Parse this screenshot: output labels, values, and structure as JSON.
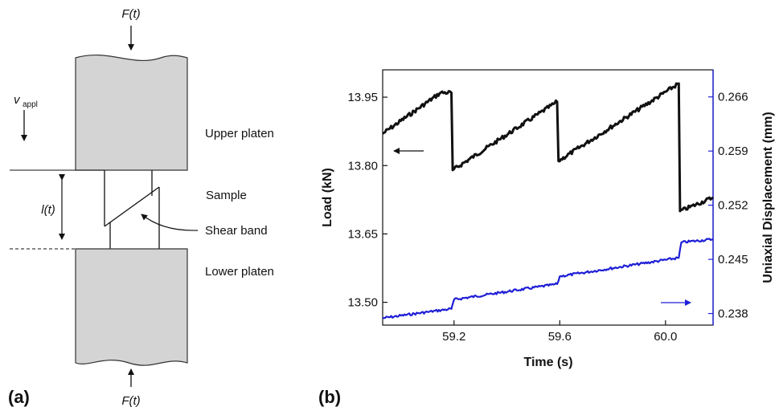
{
  "panel_a": {
    "panel_label": "(a)",
    "force_top": "F(t)",
    "force_bottom": "F(t)",
    "v_label": "v",
    "v_sub": "appl",
    "length_label": "l(t)",
    "upper_platen": "Upper platen",
    "sample": "Sample",
    "shear_band": "Shear band",
    "lower_platen": "Lower platen",
    "platen_fill": "#d4d4d4"
  },
  "panel_b": {
    "panel_label": "(b)"
  },
  "chart_data": {
    "type": "line",
    "xlabel": "Time (s)",
    "ylabel_left": "Load (kN)",
    "ylabel_right": "Uniaxial Displacement (mm)",
    "xlim": [
      58.93,
      60.18
    ],
    "ylim_left": [
      13.45,
      14.01
    ],
    "ylim_right": [
      0.2365,
      0.2695
    ],
    "x_ticks": [
      59.2,
      59.6,
      60.0
    ],
    "x_tick_labels": [
      "59.2",
      "59.6",
      "60.0"
    ],
    "y_left_ticks": [
      13.5,
      13.65,
      13.8,
      13.95
    ],
    "y_left_tick_labels": [
      "13.50",
      "13.65",
      "13.80",
      "13.95"
    ],
    "y_right_ticks": [
      0.238,
      0.245,
      0.252,
      0.259,
      0.266
    ],
    "y_right_tick_labels": [
      "0.238",
      "0.245",
      "0.252",
      "0.259",
      "0.266"
    ],
    "right_axis_color": "#1f1fd6",
    "series": [
      {
        "axis": "left",
        "color": "#111111",
        "x": [
          58.93,
          59.15,
          59.19,
          59.195,
          59.59,
          59.595,
          60.05,
          60.055,
          60.18
        ],
        "y": [
          13.87,
          13.96,
          13.96,
          13.79,
          13.94,
          13.81,
          13.98,
          13.7,
          13.73
        ]
      },
      {
        "axis": "right",
        "color": "#1f1fd6",
        "x": [
          58.93,
          59.1,
          59.19,
          59.2,
          59.59,
          59.6,
          60.05,
          60.06,
          60.18
        ],
        "y": [
          0.2374,
          0.2382,
          0.2386,
          0.2398,
          0.2418,
          0.2428,
          0.2452,
          0.2472,
          0.2476
        ]
      }
    ]
  }
}
